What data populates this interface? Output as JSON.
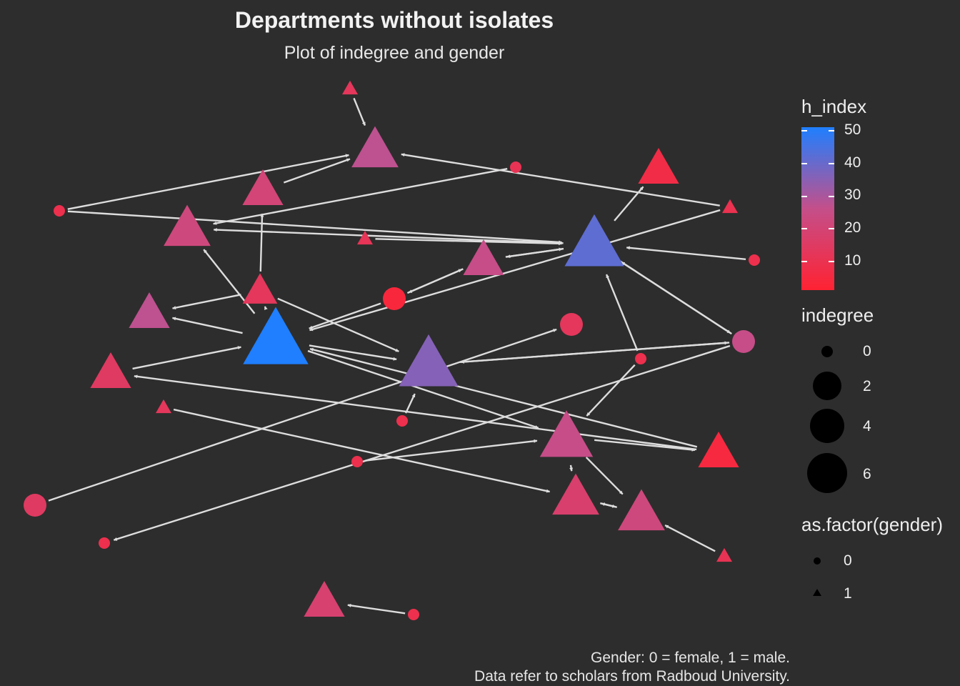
{
  "title": "Departments without isolates",
  "subtitle": "Plot of indegree and gender",
  "caption_line1": "Gender: 0 = female, 1 = male.",
  "caption_line2": "Data refer to scholars from Radboud University.",
  "colors": {
    "background": "#2d2d2d",
    "edge": "#dddddd",
    "low": "#ff2232",
    "mid": "#c44f8a",
    "high": "#1f7fff"
  },
  "legend": {
    "color_title": "h_index",
    "color_ticks": [
      "50",
      "40",
      "30",
      "20",
      "10"
    ],
    "size_title": "indegree",
    "size_labels": [
      "0",
      "2",
      "4",
      "6"
    ],
    "shape_title": "as.factor(gender)",
    "shape_labels": [
      "0",
      "1"
    ]
  },
  "graph": {
    "nodes": [
      {
        "id": 0,
        "shape": "triangle",
        "indegree": 0,
        "h_index": 12
      },
      {
        "id": 1,
        "shape": "triangle",
        "indegree": 3,
        "h_index": 27
      },
      {
        "id": 2,
        "shape": "circle",
        "indegree": 0,
        "h_index": 10
      },
      {
        "id": 3,
        "shape": "triangle",
        "indegree": 2,
        "h_index": 20
      },
      {
        "id": 4,
        "shape": "triangle",
        "indegree": 2,
        "h_index": 6
      },
      {
        "id": 5,
        "shape": "circle",
        "indegree": 0,
        "h_index": 8
      },
      {
        "id": 6,
        "shape": "triangle",
        "indegree": 3,
        "h_index": 22
      },
      {
        "id": 7,
        "shape": "triangle",
        "indegree": 0,
        "h_index": 9
      },
      {
        "id": 8,
        "shape": "triangle",
        "indegree": 0,
        "h_index": 11
      },
      {
        "id": 9,
        "shape": "triangle",
        "indegree": 5,
        "h_index": 42
      },
      {
        "id": 10,
        "shape": "triangle",
        "indegree": 2,
        "h_index": 25
      },
      {
        "id": 11,
        "shape": "circle",
        "indegree": 0,
        "h_index": 8
      },
      {
        "id": 12,
        "shape": "triangle",
        "indegree": 1,
        "h_index": 12
      },
      {
        "id": 13,
        "shape": "circle",
        "indegree": 2,
        "h_index": 3
      },
      {
        "id": 14,
        "shape": "triangle",
        "indegree": 2,
        "h_index": 27
      },
      {
        "id": 15,
        "shape": "circle",
        "indegree": 2,
        "h_index": 12
      },
      {
        "id": 16,
        "shape": "circle",
        "indegree": 2,
        "h_index": 25
      },
      {
        "id": 17,
        "shape": "triangle",
        "indegree": 6,
        "h_index": 52
      },
      {
        "id": 18,
        "shape": "circle",
        "indegree": 0,
        "h_index": 8
      },
      {
        "id": 19,
        "shape": "triangle",
        "indegree": 2,
        "h_index": 14
      },
      {
        "id": 20,
        "shape": "triangle",
        "indegree": 5,
        "h_index": 36
      },
      {
        "id": 21,
        "shape": "triangle",
        "indegree": 0,
        "h_index": 12
      },
      {
        "id": 22,
        "shape": "circle",
        "indegree": 0,
        "h_index": 8
      },
      {
        "id": 23,
        "shape": "triangle",
        "indegree": 4,
        "h_index": 25
      },
      {
        "id": 24,
        "shape": "triangle",
        "indegree": 2,
        "h_index": 4
      },
      {
        "id": 25,
        "shape": "circle",
        "indegree": 0,
        "h_index": 8
      },
      {
        "id": 26,
        "shape": "circle",
        "indegree": 2,
        "h_index": 14
      },
      {
        "id": 27,
        "shape": "circle",
        "indegree": 0,
        "h_index": 8
      },
      {
        "id": 28,
        "shape": "triangle",
        "indegree": 3,
        "h_index": 17
      },
      {
        "id": 29,
        "shape": "triangle",
        "indegree": 3,
        "h_index": 22
      },
      {
        "id": 30,
        "shape": "triangle",
        "indegree": 0,
        "h_index": 10
      },
      {
        "id": 31,
        "shape": "triangle",
        "indegree": 2,
        "h_index": 18
      },
      {
        "id": 32,
        "shape": "circle",
        "indegree": 0,
        "h_index": 8
      }
    ],
    "edges": [
      [
        0,
        1
      ],
      [
        5,
        1
      ],
      [
        3,
        1
      ],
      [
        2,
        6
      ],
      [
        5,
        9
      ],
      [
        8,
        9
      ],
      [
        11,
        9
      ],
      [
        9,
        4
      ],
      [
        9,
        6
      ],
      [
        9,
        10
      ],
      [
        10,
        9
      ],
      [
        16,
        9
      ],
      [
        9,
        16
      ],
      [
        18,
        9
      ],
      [
        7,
        1
      ],
      [
        7,
        17
      ],
      [
        12,
        3
      ],
      [
        12,
        14
      ],
      [
        12,
        17
      ],
      [
        12,
        20
      ],
      [
        17,
        14
      ],
      [
        17,
        6
      ],
      [
        17,
        20
      ],
      [
        17,
        23
      ],
      [
        13,
        10
      ],
      [
        10,
        13
      ],
      [
        13,
        17
      ],
      [
        16,
        20
      ],
      [
        20,
        16
      ],
      [
        19,
        17
      ],
      [
        24,
        19
      ],
      [
        24,
        17
      ],
      [
        22,
        20
      ],
      [
        21,
        28
      ],
      [
        23,
        29
      ],
      [
        23,
        24
      ],
      [
        23,
        28
      ],
      [
        28,
        29
      ],
      [
        29,
        28
      ],
      [
        25,
        23
      ],
      [
        18,
        23
      ],
      [
        16,
        27
      ],
      [
        30,
        29
      ],
      [
        26,
        15
      ],
      [
        32,
        31
      ]
    ]
  }
}
